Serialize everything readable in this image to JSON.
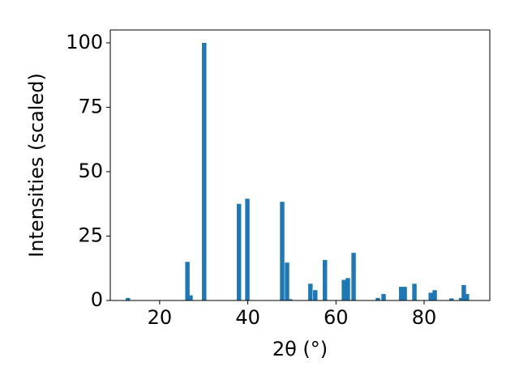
{
  "chart_data": {
    "type": "bar",
    "xlabel": "2θ (°)",
    "ylabel": "Intensities (scaled)",
    "x": [
      12.8,
      26.3,
      27.0,
      30.1,
      38.0,
      39.9,
      47.8,
      48.9,
      49.6,
      54.2,
      55.3,
      57.5,
      61.8,
      62.7,
      64.0,
      69.5,
      70.8,
      74.8,
      75.6,
      77.8,
      81.5,
      82.4,
      86.2,
      88.4,
      89.0,
      89.7
    ],
    "values": [
      1,
      15,
      2,
      100,
      37.5,
      39.5,
      38.3,
      14.7,
      0.5,
      6.5,
      4,
      15.7,
      8,
      8.7,
      18.5,
      1,
      2.5,
      5.3,
      5.3,
      6.5,
      3,
      4,
      0.8,
      1,
      6,
      2.5
    ],
    "bar_width": 1,
    "color": "#1f77b4",
    "xlim": [
      8.8,
      94.9
    ],
    "ylim": [
      0,
      105
    ],
    "xticks": [
      20,
      40,
      60,
      80
    ],
    "yticks": [
      0,
      25,
      50,
      75,
      100
    ]
  }
}
